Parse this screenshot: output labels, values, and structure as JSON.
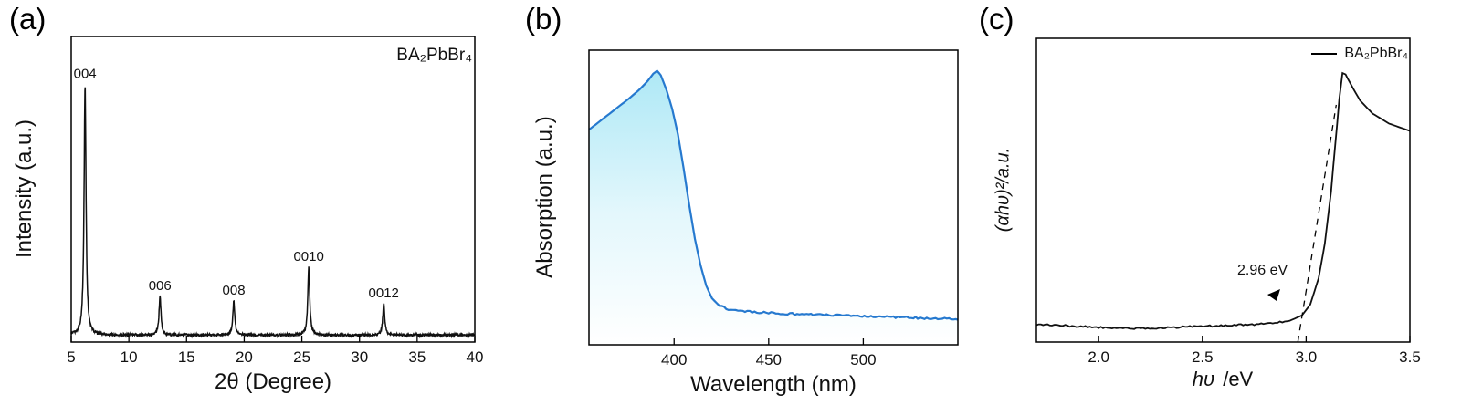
{
  "figure": {
    "background": "#ffffff",
    "text_color": "#111111"
  },
  "chart_data": [
    {
      "type": "line",
      "panel_label": "(a)",
      "xlabel": "2θ (Degree)",
      "ylabel": "Intensity (a.u.)",
      "annotation": "BA₂PbBr₄",
      "xlim": [
        5,
        40
      ],
      "ylim": [
        0,
        1.22
      ],
      "xticks": [
        5,
        10,
        15,
        20,
        25,
        30,
        35,
        40
      ],
      "xtick_labels": [
        "5",
        "10",
        "15",
        "20",
        "25",
        "30",
        "35",
        "40"
      ],
      "line_color": "#111111",
      "baseline": 0.028,
      "peaks": [
        {
          "label": "004",
          "x": 6.2,
          "height": 1.0,
          "width": 0.1
        },
        {
          "label": "006",
          "x": 12.7,
          "height": 0.155,
          "width": 0.1
        },
        {
          "label": "008",
          "x": 19.1,
          "height": 0.135,
          "width": 0.1
        },
        {
          "label": "0010",
          "x": 25.6,
          "height": 0.27,
          "width": 0.1
        },
        {
          "label": "0012",
          "x": 32.1,
          "height": 0.125,
          "width": 0.1
        }
      ]
    },
    {
      "type": "area",
      "panel_label": "(b)",
      "xlabel": "Wavelength (nm)",
      "ylabel": "Absorption (a.u.)",
      "xlim": [
        355,
        550
      ],
      "ylim": [
        0,
        1.0
      ],
      "xticks": [
        400,
        450,
        500
      ],
      "xtick_labels": [
        "400",
        "450",
        "500"
      ],
      "line_color": "#2679cf",
      "fill_top_color": "#a6e6f5",
      "fill_mid_color": "#e3f7fc",
      "fill_bottom_color": "#ffffff",
      "points": [
        [
          355,
          0.73
        ],
        [
          362,
          0.765
        ],
        [
          369,
          0.8
        ],
        [
          376,
          0.835
        ],
        [
          382,
          0.868
        ],
        [
          386,
          0.895
        ],
        [
          389,
          0.92
        ],
        [
          391,
          0.93
        ],
        [
          393,
          0.915
        ],
        [
          396,
          0.865
        ],
        [
          399,
          0.8
        ],
        [
          402,
          0.715
        ],
        [
          405,
          0.6
        ],
        [
          408,
          0.475
        ],
        [
          411,
          0.36
        ],
        [
          414,
          0.27
        ],
        [
          417,
          0.2
        ],
        [
          420,
          0.158
        ],
        [
          424,
          0.132
        ],
        [
          430,
          0.118
        ],
        [
          440,
          0.112
        ],
        [
          455,
          0.107
        ],
        [
          470,
          0.103
        ],
        [
          490,
          0.099
        ],
        [
          510,
          0.095
        ],
        [
          530,
          0.091
        ],
        [
          550,
          0.087
        ]
      ]
    },
    {
      "type": "line",
      "panel_label": "(c)",
      "xlabel": "hυ /eV",
      "xlabel_math": "hυ",
      "xlabel_unit": " /eV",
      "ylabel": "(αhυ)²/a.u.",
      "legend": "BA₂PbBr₄",
      "annotation": "2.96 eV",
      "bandgap_ev": 2.96,
      "xlim": [
        1.7,
        3.5
      ],
      "ylim": [
        0,
        1.05
      ],
      "xticks": [
        2.0,
        2.5,
        3.0,
        3.5
      ],
      "xtick_labels": [
        "2.0",
        "2.5",
        "3.0",
        "3.5"
      ],
      "line_color": "#111111",
      "tangent": {
        "x0": 2.96,
        "y0": 0.0,
        "x1": 3.145,
        "y1": 0.82
      },
      "points": [
        [
          1.7,
          0.06
        ],
        [
          1.85,
          0.056
        ],
        [
          2.0,
          0.051
        ],
        [
          2.15,
          0.047
        ],
        [
          2.3,
          0.049
        ],
        [
          2.45,
          0.053
        ],
        [
          2.6,
          0.057
        ],
        [
          2.75,
          0.061
        ],
        [
          2.85,
          0.066
        ],
        [
          2.92,
          0.073
        ],
        [
          2.98,
          0.092
        ],
        [
          3.02,
          0.13
        ],
        [
          3.06,
          0.22
        ],
        [
          3.09,
          0.34
        ],
        [
          3.12,
          0.52
        ],
        [
          3.14,
          0.68
        ],
        [
          3.16,
          0.84
        ],
        [
          3.175,
          0.93
        ],
        [
          3.19,
          0.925
        ],
        [
          3.22,
          0.885
        ],
        [
          3.26,
          0.835
        ],
        [
          3.32,
          0.79
        ],
        [
          3.4,
          0.755
        ],
        [
          3.5,
          0.73
        ]
      ]
    }
  ]
}
